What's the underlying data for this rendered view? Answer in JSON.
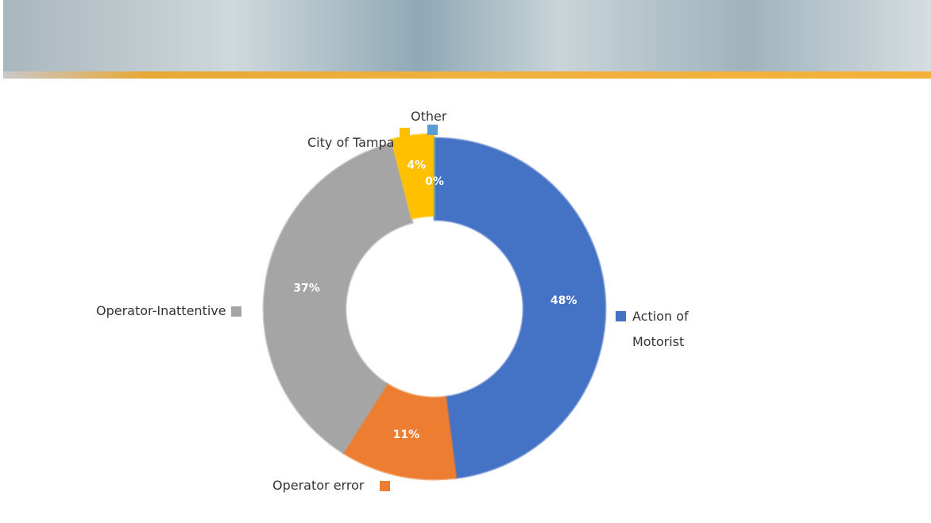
{
  "chart_data": {
    "type": "donut",
    "categories": [
      "Action of Motorist",
      "Operator error",
      "Operator-Inattentive",
      "City of Tampa",
      "Other"
    ],
    "values": [
      48,
      11,
      37,
      4,
      0
    ],
    "value_labels": [
      "48%",
      "11%",
      "37%",
      "4%",
      "0%"
    ],
    "colors": [
      "#4472c4",
      "#ed7d31",
      "#a5a5a5",
      "#ffc000",
      "#5b9bd5"
    ]
  }
}
